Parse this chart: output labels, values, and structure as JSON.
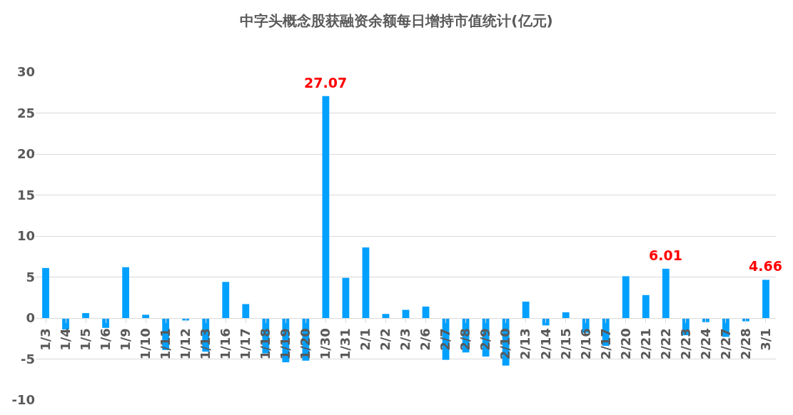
{
  "chart_data": {
    "type": "bar",
    "title": "中字头概念股获融资余额每日增持市值统计(亿元)",
    "categories": [
      "1/3",
      "1/4",
      "1/5",
      "1/6",
      "1/9",
      "1/10",
      "1/11",
      "1/12",
      "1/13",
      "1/16",
      "1/17",
      "1/18",
      "1/19",
      "1/20",
      "1/30",
      "1/31",
      "2/1",
      "2/2",
      "2/3",
      "2/6",
      "2/7",
      "2/8",
      "2/9",
      "2/10",
      "2/13",
      "2/14",
      "2/15",
      "2/16",
      "2/17",
      "2/20",
      "2/21",
      "2/22",
      "2/23",
      "2/24",
      "2/27",
      "2/28",
      "3/1"
    ],
    "values": [
      6.1,
      -1.4,
      0.6,
      -1.2,
      6.2,
      0.4,
      -3.9,
      -0.3,
      -4.1,
      4.4,
      1.7,
      -4.3,
      -5.4,
      -5.2,
      27.07,
      4.9,
      8.6,
      0.5,
      1.0,
      1.4,
      -5.1,
      -4.2,
      -4.7,
      -5.8,
      2.0,
      -0.9,
      0.7,
      -1.8,
      -3.4,
      5.1,
      2.8,
      6.01,
      -2.1,
      -0.5,
      -2.3,
      -0.4,
      4.66
    ],
    "value_labels": [
      null,
      null,
      null,
      null,
      null,
      null,
      null,
      null,
      null,
      null,
      null,
      null,
      null,
      null,
      "27.07",
      null,
      null,
      null,
      null,
      null,
      null,
      null,
      null,
      null,
      null,
      null,
      null,
      null,
      null,
      null,
      null,
      "6.01",
      null,
      null,
      null,
      null,
      "4.66"
    ],
    "color": "#00a0ff",
    "ylim": [
      -10,
      30
    ],
    "yticks": [
      -10,
      -5,
      0,
      5,
      10,
      15,
      20,
      25,
      30
    ],
    "grid": "y"
  }
}
